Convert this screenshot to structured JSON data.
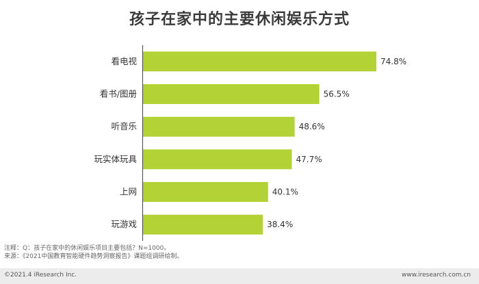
{
  "title": "孩子在家中的主要休闲娱乐方式",
  "chart_data": {
    "type": "bar",
    "orientation": "horizontal",
    "categories": [
      "看电视",
      "看书/图册",
      "听音乐",
      "玩实体玩具",
      "上网",
      "玩游戏"
    ],
    "values": [
      74.8,
      56.5,
      48.6,
      47.7,
      40.1,
      38.4
    ],
    "value_labels": [
      "74.8%",
      "56.5%",
      "48.6%",
      "47.7%",
      "40.1%",
      "38.4%"
    ],
    "xlim": [
      0,
      80
    ],
    "grid": false,
    "bar_color": "#b2d235"
  },
  "notes": {
    "line1": "注释：Q：孩子在家中的休闲娱乐项目主要包括？N=1000。",
    "line2": "来源：《2021中国教育智能硬件趋势洞察报告》课题组调研绘制。"
  },
  "footer": {
    "left": "©2021.4 iResearch Inc.",
    "right": "www.iresearch.com.cn"
  }
}
